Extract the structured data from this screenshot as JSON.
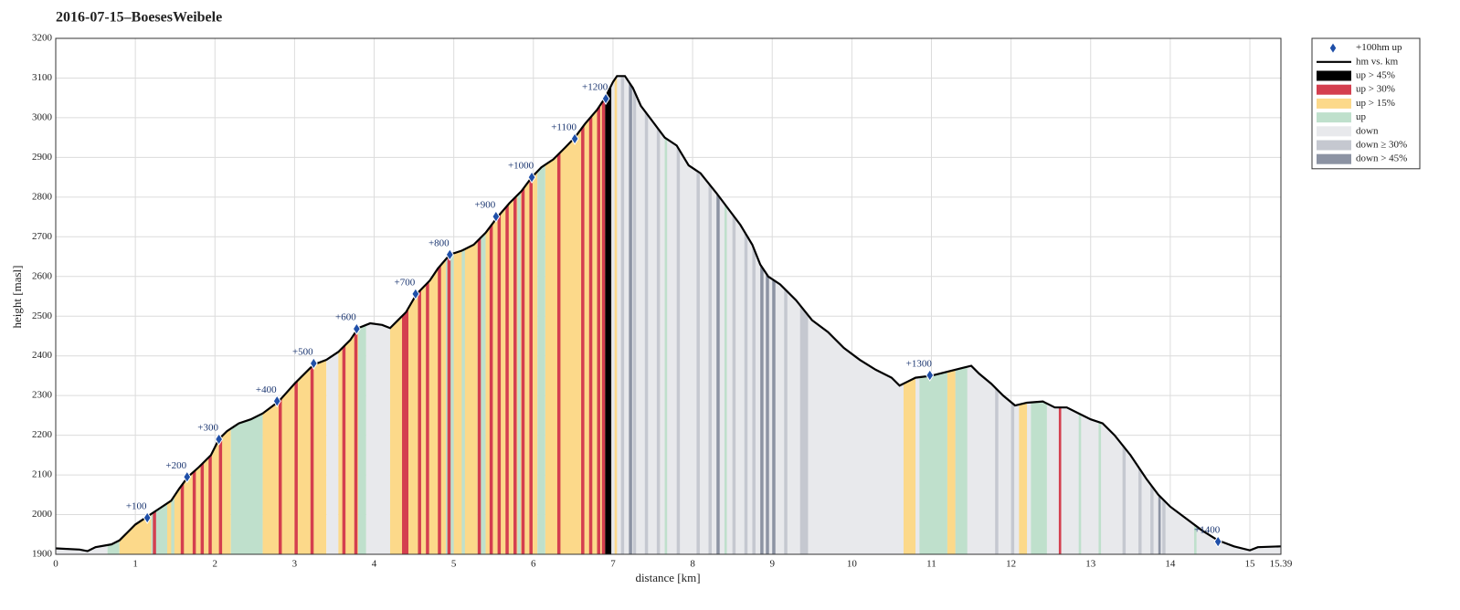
{
  "chart_data": {
    "type": "line",
    "title": "2016-07-15–BoesesWeibele",
    "x_label": "distance [km]",
    "y_label": "height [masl]",
    "xlim": [
      0,
      15.39
    ],
    "ylim": [
      1900,
      3200
    ],
    "xticks": [
      0,
      1,
      2,
      3,
      4,
      5,
      6,
      7,
      8,
      9,
      10,
      11,
      12,
      13,
      14,
      15,
      15.39
    ],
    "yticks": [
      1900,
      2000,
      2100,
      2200,
      2300,
      2400,
      2500,
      2600,
      2700,
      2800,
      2900,
      3000,
      3100,
      3200
    ],
    "grid": true,
    "legend": "outside-top-right",
    "series": [
      {
        "name": "hm vs. km",
        "color": "#000000",
        "x": [
          0,
          0.3,
          0.4,
          0.5,
          0.7,
          0.8,
          0.9,
          1.0,
          1.15,
          1.3,
          1.45,
          1.55,
          1.66,
          1.8,
          1.95,
          2.05,
          2.15,
          2.3,
          2.45,
          2.6,
          2.8,
          3.0,
          3.2,
          3.27,
          3.4,
          3.55,
          3.7,
          3.8,
          3.95,
          4.1,
          4.2,
          4.3,
          4.4,
          4.53,
          4.7,
          4.8,
          4.95,
          5.1,
          5.25,
          5.4,
          5.55,
          5.7,
          5.85,
          5.98,
          6.1,
          6.25,
          6.4,
          6.52,
          6.65,
          6.8,
          6.9,
          7.0,
          7.05,
          7.15,
          7.25,
          7.35,
          7.5,
          7.65,
          7.8,
          7.95,
          8.1,
          8.3,
          8.45,
          8.6,
          8.75,
          8.85,
          8.95,
          9.1,
          9.3,
          9.5,
          9.7,
          9.9,
          10.1,
          10.3,
          10.5,
          10.6,
          10.7,
          10.8,
          11.0,
          11.2,
          11.4,
          11.5,
          11.6,
          11.75,
          11.9,
          12.05,
          12.2,
          12.4,
          12.55,
          12.7,
          12.85,
          13.0,
          13.15,
          13.3,
          13.5,
          13.7,
          13.85,
          14.0,
          14.2,
          14.4,
          14.6,
          14.8,
          15.0,
          15.1,
          15.39
        ],
        "values": [
          1915,
          1912,
          1908,
          1918,
          1925,
          1935,
          1955,
          1975,
          1995,
          2015,
          2035,
          2065,
          2095,
          2120,
          2150,
          2190,
          2210,
          2230,
          2240,
          2255,
          2285,
          2330,
          2370,
          2380,
          2390,
          2410,
          2440,
          2470,
          2482,
          2478,
          2470,
          2490,
          2510,
          2555,
          2590,
          2620,
          2655,
          2665,
          2680,
          2710,
          2750,
          2785,
          2815,
          2850,
          2875,
          2895,
          2925,
          2950,
          2985,
          3020,
          3050,
          3090,
          3105,
          3105,
          3075,
          3030,
          2990,
          2950,
          2930,
          2880,
          2860,
          2810,
          2770,
          2730,
          2680,
          2630,
          2600,
          2580,
          2540,
          2490,
          2460,
          2420,
          2390,
          2365,
          2345,
          2325,
          2335,
          2345,
          2350,
          2360,
          2370,
          2375,
          2355,
          2330,
          2300,
          2275,
          2282,
          2285,
          2270,
          2270,
          2255,
          2240,
          2230,
          2200,
          2150,
          2090,
          2050,
          2020,
          1990,
          1960,
          1935,
          1920,
          1910,
          1918,
          1920
        ]
      }
    ],
    "markers": {
      "name": "+100hm up",
      "color": "#1f4fa8",
      "x": [
        1.15,
        1.65,
        2.05,
        2.78,
        3.24,
        3.78,
        4.52,
        4.95,
        5.53,
        5.98,
        6.52,
        6.91,
        10.98,
        14.6
      ],
      "values": [
        1992,
        2095,
        2190,
        2286,
        2381,
        2468,
        2556,
        2655,
        2751,
        2850,
        2947,
        3048,
        2351,
        1932
      ],
      "labels": [
        "+100",
        "+200",
        "+300",
        "+400",
        "+500",
        "+600",
        "+700",
        "+800",
        "+900",
        "+1000",
        "+1100",
        "+1200",
        "+1300",
        "+1400"
      ]
    },
    "bands": {
      "names": [
        "up > 45%",
        "up > 30%",
        "up > 15%",
        "up",
        "down",
        "down ≥ 30%",
        "down > 45%"
      ],
      "colors": [
        "#000000",
        "#d43f4f",
        "#fcd98a",
        "#bfe0cc",
        "#e8e9ec",
        "#c5c8d0",
        "#8c93a3"
      ],
      "stripes": [
        [
          0,
          0.65,
          4
        ],
        [
          0.65,
          0.8,
          3
        ],
        [
          0.8,
          1.2,
          2
        ],
        [
          1.2,
          1.4,
          3
        ],
        [
          1.4,
          2.2,
          2
        ],
        [
          2.2,
          2.6,
          3
        ],
        [
          2.6,
          3.4,
          2
        ],
        [
          3.4,
          3.55,
          4
        ],
        [
          3.55,
          3.8,
          2
        ],
        [
          3.8,
          3.9,
          3
        ],
        [
          3.9,
          4.2,
          4
        ],
        [
          4.2,
          4.9,
          2
        ],
        [
          4.9,
          5.0,
          3
        ],
        [
          5.0,
          5.3,
          2
        ],
        [
          5.3,
          5.4,
          3
        ],
        [
          5.4,
          6.05,
          2
        ],
        [
          6.05,
          6.15,
          3
        ],
        [
          6.15,
          6.9,
          2
        ],
        [
          6.9,
          6.98,
          0
        ],
        [
          6.98,
          15.39,
          4
        ],
        [
          1.22,
          1.26,
          1
        ],
        [
          1.57,
          1.61,
          1
        ],
        [
          1.72,
          1.76,
          1
        ],
        [
          1.82,
          1.86,
          1
        ],
        [
          1.92,
          1.96,
          1
        ],
        [
          2.05,
          2.09,
          1
        ],
        [
          2.8,
          2.84,
          1
        ],
        [
          3.0,
          3.04,
          1
        ],
        [
          3.2,
          3.24,
          1
        ],
        [
          3.6,
          3.64,
          1
        ],
        [
          3.75,
          3.79,
          1
        ],
        [
          4.35,
          4.43,
          1
        ],
        [
          4.55,
          4.59,
          1
        ],
        [
          4.65,
          4.69,
          1
        ],
        [
          4.8,
          4.84,
          1
        ],
        [
          4.92,
          4.96,
          1
        ],
        [
          5.3,
          5.34,
          1
        ],
        [
          5.45,
          5.49,
          1
        ],
        [
          5.55,
          5.59,
          1
        ],
        [
          5.65,
          5.69,
          1
        ],
        [
          5.75,
          5.79,
          1
        ],
        [
          5.85,
          5.89,
          1
        ],
        [
          5.95,
          5.99,
          1
        ],
        [
          6.3,
          6.34,
          1
        ],
        [
          6.6,
          6.64,
          1
        ],
        [
          6.7,
          6.74,
          1
        ],
        [
          6.8,
          6.84,
          1
        ],
        [
          6.86,
          6.9,
          1
        ],
        [
          12.6,
          12.63,
          1
        ],
        [
          1.45,
          1.49,
          3
        ],
        [
          2.3,
          2.34,
          3
        ],
        [
          2.45,
          2.49,
          3
        ],
        [
          5.1,
          5.14,
          3
        ],
        [
          5.8,
          5.84,
          3
        ],
        [
          7.65,
          7.68,
          3
        ],
        [
          8.4,
          8.43,
          3
        ],
        [
          10.85,
          11.2,
          3
        ],
        [
          11.3,
          11.45,
          3
        ],
        [
          12.25,
          12.45,
          3
        ],
        [
          12.85,
          12.88,
          3
        ],
        [
          13.1,
          13.13,
          3
        ],
        [
          14.3,
          14.33,
          3
        ],
        [
          7.02,
          7.05,
          2
        ],
        [
          10.65,
          10.8,
          2
        ],
        [
          11.2,
          11.3,
          2
        ],
        [
          12.1,
          12.2,
          2
        ],
        [
          7.1,
          7.14,
          5
        ],
        [
          7.25,
          7.29,
          5
        ],
        [
          7.4,
          7.44,
          5
        ],
        [
          7.55,
          7.59,
          5
        ],
        [
          7.8,
          7.84,
          5
        ],
        [
          8.05,
          8.09,
          5
        ],
        [
          8.2,
          8.24,
          5
        ],
        [
          8.5,
          8.54,
          5
        ],
        [
          8.65,
          8.69,
          5
        ],
        [
          8.75,
          8.79,
          5
        ],
        [
          9.15,
          9.19,
          5
        ],
        [
          9.35,
          9.45,
          5
        ],
        [
          11.8,
          11.84,
          5
        ],
        [
          12.0,
          12.04,
          5
        ],
        [
          13.4,
          13.44,
          5
        ],
        [
          13.6,
          13.64,
          5
        ],
        [
          13.75,
          13.79,
          5
        ],
        [
          13.9,
          13.94,
          5
        ],
        [
          7.2,
          7.24,
          6
        ],
        [
          8.3,
          8.34,
          6
        ],
        [
          8.85,
          8.89,
          6
        ],
        [
          8.92,
          8.96,
          6
        ],
        [
          9.0,
          9.04,
          6
        ],
        [
          13.85,
          13.88,
          6
        ]
      ]
    }
  }
}
